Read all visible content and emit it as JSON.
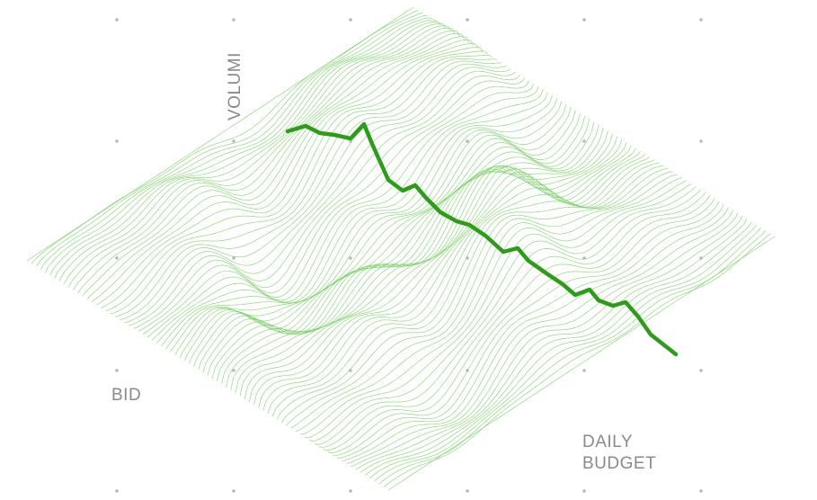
{
  "labels": {
    "z_axis": "VOLUMI",
    "x_axis": "BID",
    "y_axis": "DAILY\nBUDGET"
  },
  "colors": {
    "mesh": "#7ccf6a",
    "highlight": "#2f9a1c",
    "grid_dot": "#b9b9b9",
    "label": "#8a8a8a",
    "background": "#ffffff"
  },
  "surface": {
    "style": "isometric-wireframe",
    "highlighted_profile": true
  }
}
